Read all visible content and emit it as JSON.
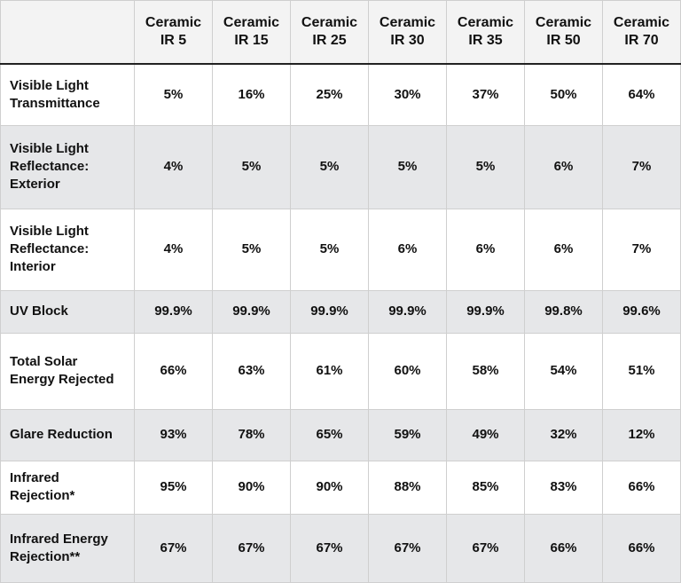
{
  "table": {
    "columns": [
      "Ceramic IR 5",
      "Ceramic IR 15",
      "Ceramic IR 25",
      "Ceramic IR 30",
      "Ceramic IR 35",
      "Ceramic IR 50",
      "Ceramic IR 70"
    ],
    "rows": [
      {
        "label": "Visible Light Transmittance",
        "cells": [
          "5%",
          "16%",
          "25%",
          "30%",
          "37%",
          "50%",
          "64%"
        ]
      },
      {
        "label": "Visible Light Reflectance: Exterior",
        "cells": [
          "4%",
          "5%",
          "5%",
          "5%",
          "5%",
          "6%",
          "7%"
        ]
      },
      {
        "label": "Visible Light Reflectance: Interior",
        "cells": [
          "4%",
          "5%",
          "5%",
          "6%",
          "6%",
          "6%",
          "7%"
        ]
      },
      {
        "label": "UV Block",
        "cells": [
          "99.9%",
          "99.9%",
          "99.9%",
          "99.9%",
          "99.9%",
          "99.8%",
          "99.6%"
        ]
      },
      {
        "label": "Total Solar Energy Rejected",
        "cells": [
          "66%",
          "63%",
          "61%",
          "60%",
          "58%",
          "54%",
          "51%"
        ]
      },
      {
        "label": "Glare Reduction",
        "cells": [
          "93%",
          "78%",
          "65%",
          "59%",
          "49%",
          "32%",
          "12%"
        ]
      },
      {
        "label": "Infrared Rejection*",
        "cells": [
          "95%",
          "90%",
          "90%",
          "88%",
          "85%",
          "83%",
          "66%"
        ]
      },
      {
        "label": "Infrared Energy Rejection**",
        "cells": [
          "67%",
          "67%",
          "67%",
          "67%",
          "67%",
          "66%",
          "66%"
        ]
      }
    ]
  }
}
